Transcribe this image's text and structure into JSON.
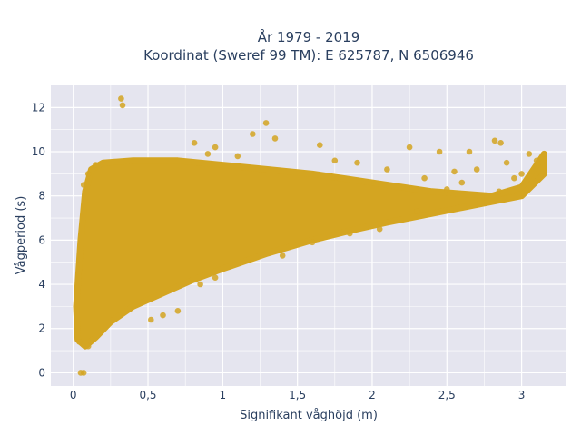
{
  "chart_data": {
    "type": "scatter",
    "title_lines": [
      "År 1979 - 2019",
      "Koordinat (Sweref 99 TM): E 625787, N 6506946"
    ],
    "xlabel": "Signifikant våghöjd (m)",
    "ylabel": "Vågperiod (s)",
    "xlim": [
      -0.15,
      3.3
    ],
    "ylim": [
      -0.6,
      13
    ],
    "x_ticks": [
      0,
      0.5,
      1,
      1.5,
      2,
      2.5,
      3
    ],
    "x_tick_labels": [
      "0",
      "0,5",
      "1",
      "1,5",
      "2",
      "2,5",
      "3"
    ],
    "y_ticks": [
      0,
      2,
      4,
      6,
      8,
      10,
      12
    ],
    "y_tick_labels": [
      "0",
      "2",
      "4",
      "6",
      "8",
      "10",
      "12"
    ],
    "grid": true,
    "marker_color": "#D4A521",
    "plot_bg": "#E5E5EF",
    "dense_region": {
      "upper_bound": [
        [
          0.02,
          3.0
        ],
        [
          0.05,
          6.0
        ],
        [
          0.08,
          8.2
        ],
        [
          0.12,
          9.2
        ],
        [
          0.2,
          9.5
        ],
        [
          0.4,
          9.6
        ],
        [
          0.7,
          9.6
        ],
        [
          1.0,
          9.4
        ],
        [
          1.3,
          9.2
        ],
        [
          1.6,
          9.0
        ],
        [
          1.8,
          8.8
        ],
        [
          2.0,
          8.6
        ],
        [
          2.2,
          8.4
        ],
        [
          2.4,
          8.2
        ],
        [
          2.6,
          8.1
        ],
        [
          2.8,
          8.0
        ],
        [
          3.0,
          8.4
        ],
        [
          3.15,
          9.9
        ]
      ],
      "lower_bound": [
        [
          3.15,
          9.0
        ],
        [
          3.0,
          8.0
        ],
        [
          2.7,
          7.6
        ],
        [
          2.4,
          7.2
        ],
        [
          2.1,
          6.8
        ],
        [
          1.9,
          6.5
        ],
        [
          1.6,
          6.0
        ],
        [
          1.3,
          5.4
        ],
        [
          1.0,
          4.7
        ],
        [
          0.8,
          4.2
        ],
        [
          0.6,
          3.6
        ],
        [
          0.4,
          3.0
        ],
        [
          0.25,
          2.3
        ],
        [
          0.15,
          1.6
        ],
        [
          0.08,
          1.2
        ],
        [
          0.03,
          1.5
        ]
      ]
    },
    "points": [
      [
        0.32,
        12.4
      ],
      [
        0.33,
        12.1
      ],
      [
        0.05,
        0.0
      ],
      [
        0.07,
        0.0
      ],
      [
        1.29,
        11.3
      ],
      [
        0.81,
        10.4
      ],
      [
        1.2,
        10.8
      ],
      [
        1.35,
        10.6
      ],
      [
        0.95,
        10.2
      ],
      [
        1.65,
        10.3
      ],
      [
        2.25,
        10.2
      ],
      [
        2.45,
        10.0
      ],
      [
        2.65,
        10.0
      ],
      [
        2.82,
        10.5
      ],
      [
        2.86,
        10.4
      ],
      [
        3.05,
        9.9
      ],
      [
        3.1,
        9.6
      ],
      [
        3.15,
        9.9
      ],
      [
        2.7,
        9.2
      ],
      [
        2.9,
        9.5
      ],
      [
        2.95,
        8.8
      ],
      [
        2.55,
        9.1
      ],
      [
        2.35,
        8.8
      ],
      [
        2.6,
        8.6
      ],
      [
        2.5,
        8.3
      ],
      [
        2.85,
        8.2
      ],
      [
        3.0,
        9.0
      ],
      [
        1.9,
        9.5
      ],
      [
        1.1,
        9.8
      ],
      [
        0.9,
        9.9
      ],
      [
        1.75,
        9.6
      ],
      [
        2.1,
        9.2
      ],
      [
        0.7,
        2.8
      ],
      [
        0.52,
        2.4
      ],
      [
        0.6,
        2.6
      ],
      [
        0.04,
        1.4
      ],
      [
        0.1,
        1.2
      ],
      [
        1.4,
        5.3
      ],
      [
        1.6,
        5.9
      ],
      [
        1.85,
        6.3
      ],
      [
        2.05,
        6.5
      ],
      [
        2.3,
        7.3
      ],
      [
        0.95,
        4.3
      ],
      [
        0.85,
        4.0
      ],
      [
        0.07,
        8.5
      ],
      [
        0.1,
        9.0
      ],
      [
        0.15,
        9.4
      ]
    ]
  }
}
